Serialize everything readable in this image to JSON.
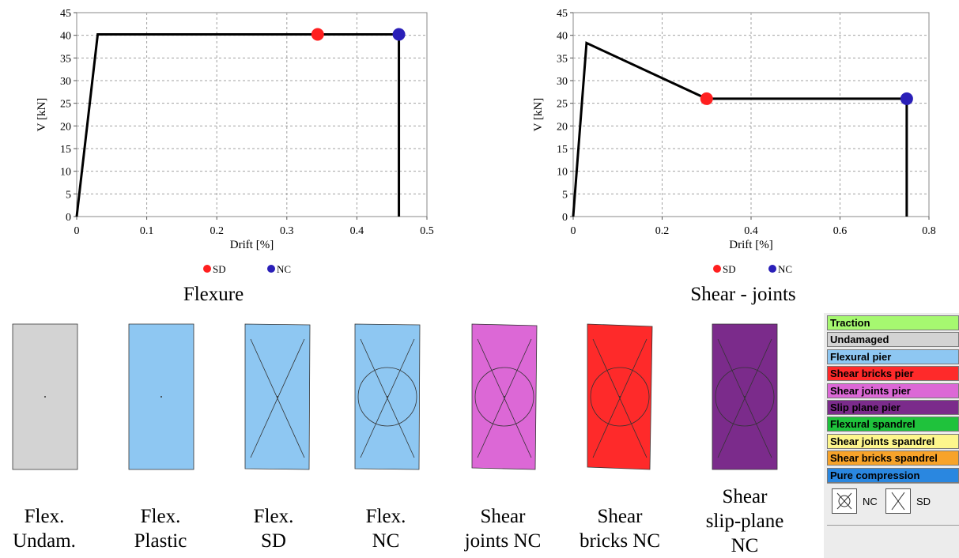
{
  "chart_data": [
    {
      "type": "line",
      "title": "Flexure",
      "xlabel": "Drift [%]",
      "ylabel": "V [kN]",
      "xlim": [
        0,
        0.5
      ],
      "ylim": [
        0,
        45
      ],
      "xticks": [
        "0",
        "0.1",
        "0.2",
        "0.3",
        "0.4",
        "0.5"
      ],
      "yticks": [
        "0",
        "5",
        "10",
        "15",
        "20",
        "25",
        "30",
        "35",
        "40",
        "45"
      ],
      "grid": true,
      "curve": {
        "x": [
          0,
          0.03,
          0.46,
          0.46
        ],
        "y": [
          0,
          40.2,
          40.2,
          0
        ]
      },
      "points": [
        {
          "name": "SD",
          "x": 0.344,
          "y": 40.2,
          "color": "#ff1f1f"
        },
        {
          "name": "NC",
          "x": 0.46,
          "y": 40.2,
          "color": "#2a1fb8"
        }
      ],
      "legend": [
        "SD",
        "NC"
      ],
      "legend_position": "bottom"
    },
    {
      "type": "line",
      "title": "Shear - joints",
      "xlabel": "Drift [%]",
      "ylabel": "V [kN]",
      "xlim": [
        0,
        0.8
      ],
      "ylim": [
        0,
        45
      ],
      "xticks": [
        "0",
        "0.2",
        "0.4",
        "0.6",
        "0.8"
      ],
      "yticks": [
        "0",
        "5",
        "10",
        "15",
        "20",
        "25",
        "30",
        "35",
        "40",
        "45"
      ],
      "grid": true,
      "curve": {
        "x": [
          0,
          0.03,
          0.3,
          0.75,
          0.75
        ],
        "y": [
          0,
          38.3,
          26,
          26,
          0
        ]
      },
      "points": [
        {
          "name": "SD",
          "x": 0.3,
          "y": 26,
          "color": "#ff1f1f"
        },
        {
          "name": "NC",
          "x": 0.75,
          "y": 26,
          "color": "#2a1fb8"
        }
      ],
      "legend": [
        "SD",
        "NC"
      ],
      "legend_position": "bottom"
    }
  ],
  "panels": [
    {
      "lines": [
        "Flex.",
        "Undam."
      ],
      "fill": "#d3d3d3",
      "cross": false,
      "circle": false,
      "tilt": 0
    },
    {
      "lines": [
        "Flex.",
        "Plastic"
      ],
      "fill": "#8ec7f2",
      "cross": false,
      "circle": false,
      "tilt": 0
    },
    {
      "lines": [
        "Flex.",
        "SD"
      ],
      "fill": "#8ec7f2",
      "cross": true,
      "circle": false,
      "tilt": 1
    },
    {
      "lines": [
        "Flex.",
        "NC"
      ],
      "fill": "#8ec7f2",
      "cross": true,
      "circle": true,
      "tilt": 1
    },
    {
      "lines": [
        "Shear",
        "joints NC"
      ],
      "fill": "#dc68d6",
      "cross": true,
      "circle": true,
      "tilt": 2
    },
    {
      "lines": [
        "Shear",
        "bricks NC"
      ],
      "fill": "#fe2a2a",
      "cross": true,
      "circle": true,
      "tilt": 3
    },
    {
      "lines": [
        "Shear",
        "slip-plane",
        "NC"
      ],
      "fill": "#7b2b8b",
      "cross": true,
      "circle": true,
      "tilt": 0
    }
  ],
  "legend_panel": {
    "items": [
      {
        "label": "Traction",
        "color": "#a6f870"
      },
      {
        "label": "Undamaged",
        "color": "#d3d3d3"
      },
      {
        "label": "Flexural pier",
        "color": "#8ec7f2"
      },
      {
        "label": "Shear bricks pier",
        "color": "#fe2a2a"
      },
      {
        "label": "Shear joints pier",
        "color": "#dc68d6"
      },
      {
        "label": "Slip plane pier",
        "color": "#7b2b8b"
      },
      {
        "label": "Flexural spandrel",
        "color": "#1fc23c"
      },
      {
        "label": "Shear joints spandrel",
        "color": "#fdf68c"
      },
      {
        "label": "Shear bricks spandrel",
        "color": "#f7a32a"
      },
      {
        "label": "Pure compression",
        "color": "#2a87e0"
      }
    ],
    "symbols": [
      {
        "label": "NC",
        "icon": "circle-cross-icon"
      },
      {
        "label": "SD",
        "icon": "cross-icon"
      }
    ]
  }
}
